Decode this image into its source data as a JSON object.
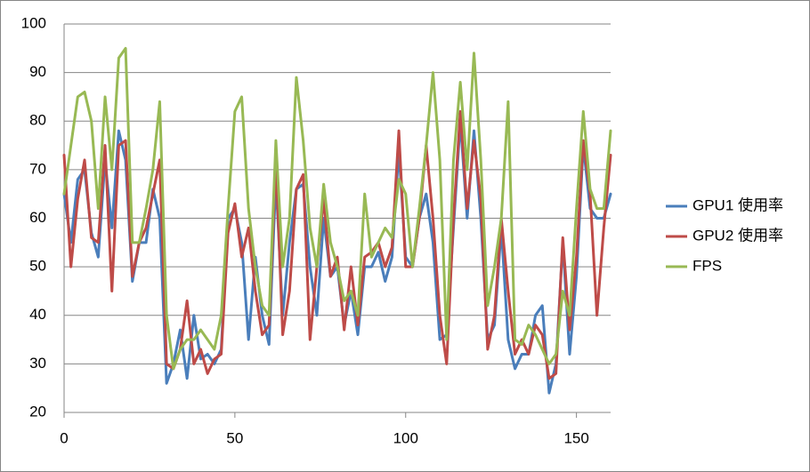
{
  "chart_data": {
    "type": "line",
    "x": [
      0,
      2,
      4,
      6,
      8,
      10,
      12,
      14,
      16,
      18,
      20,
      22,
      24,
      26,
      28,
      30,
      32,
      34,
      36,
      38,
      40,
      42,
      44,
      46,
      48,
      50,
      52,
      54,
      56,
      58,
      60,
      62,
      64,
      66,
      68,
      70,
      72,
      74,
      76,
      78,
      80,
      82,
      84,
      86,
      88,
      90,
      92,
      94,
      96,
      98,
      100,
      102,
      104,
      106,
      108,
      110,
      112,
      114,
      116,
      118,
      120,
      122,
      124,
      126,
      128,
      130,
      132,
      134,
      136,
      138,
      140,
      142,
      144,
      146,
      148,
      150,
      152,
      154,
      156,
      158,
      160
    ],
    "series": [
      {
        "name": "GPU1 使用率",
        "color": "#4a7ebb",
        "values": [
          65,
          55,
          68,
          70,
          57,
          52,
          72,
          58,
          78,
          72,
          47,
          55,
          55,
          66,
          60,
          26,
          30,
          37,
          27,
          40,
          31,
          32,
          30,
          33,
          60,
          62,
          55,
          35,
          52,
          40,
          34,
          68,
          40,
          55,
          66,
          67,
          50,
          40,
          60,
          48,
          50,
          38,
          45,
          36,
          50,
          50,
          53,
          47,
          52,
          74,
          52,
          50,
          60,
          65,
          55,
          35,
          36,
          58,
          80,
          60,
          78,
          60,
          35,
          38,
          58,
          35,
          29,
          32,
          32,
          40,
          42,
          24,
          30,
          55,
          32,
          48,
          75,
          62,
          60,
          60,
          65
        ]
      },
      {
        "name": "GPU2 使用率",
        "color": "#be4b48",
        "values": [
          73,
          50,
          64,
          72,
          56,
          55,
          75,
          45,
          75,
          76,
          48,
          55,
          58,
          65,
          72,
          30,
          29,
          33,
          43,
          30,
          33,
          28,
          31,
          32,
          57,
          63,
          52,
          58,
          45,
          36,
          38,
          72,
          36,
          45,
          66,
          69,
          35,
          50,
          64,
          48,
          52,
          37,
          50,
          38,
          52,
          53,
          55,
          50,
          54,
          78,
          50,
          50,
          60,
          75,
          60,
          40,
          30,
          60,
          82,
          62,
          76,
          64,
          33,
          40,
          60,
          45,
          32,
          35,
          32,
          38,
          36,
          27,
          28,
          56,
          37,
          52,
          76,
          65,
          40,
          58,
          73
        ]
      },
      {
        "name": "FPS",
        "color": "#98b954",
        "values": [
          65,
          75,
          85,
          86,
          80,
          62,
          85,
          70,
          93,
          95,
          55,
          55,
          62,
          70,
          84,
          40,
          29,
          33,
          35,
          35,
          37,
          35,
          33,
          40,
          62,
          82,
          85,
          62,
          50,
          42,
          40,
          76,
          50,
          60,
          89,
          76,
          58,
          50,
          67,
          55,
          50,
          43,
          45,
          40,
          65,
          52,
          55,
          58,
          56,
          68,
          65,
          50,
          62,
          75,
          90,
          72,
          35,
          72,
          88,
          70,
          94,
          72,
          42,
          50,
          60,
          84,
          35,
          34,
          38,
          36,
          33,
          30,
          32,
          45,
          40,
          62,
          82,
          66,
          62,
          62,
          78
        ]
      }
    ],
    "xlim": [
      0,
      160
    ],
    "xticks": [
      0,
      50,
      100,
      150
    ],
    "ylim": [
      20,
      100
    ],
    "yticks": [
      20,
      30,
      40,
      50,
      60,
      70,
      80,
      90,
      100
    ],
    "grid": true
  }
}
